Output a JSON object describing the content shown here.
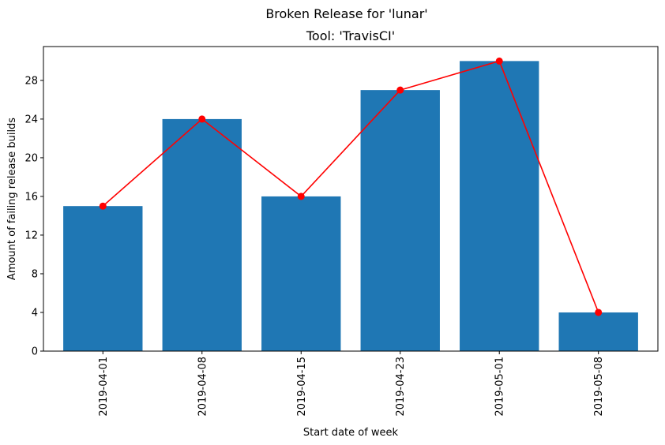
{
  "chart_data": {
    "type": "bar",
    "title": "Broken Release for 'lunar'",
    "subtitle": "Tool: 'TravisCI'",
    "xlabel": "Start date of week",
    "ylabel": "Amount of failing release builds",
    "categories": [
      "2019-04-01",
      "2019-04-08",
      "2019-04-15",
      "2019-04-23",
      "2019-05-01",
      "2019-05-08"
    ],
    "values": [
      15,
      24,
      16,
      27,
      30,
      4
    ],
    "overlay_line": {
      "values": [
        15,
        24,
        16,
        27,
        30,
        4
      ],
      "color": "#ff0000",
      "marker": "circle"
    },
    "yticks": [
      0,
      4,
      8,
      12,
      16,
      20,
      24,
      28
    ],
    "ylim": [
      0,
      31.5
    ],
    "grid": false,
    "bar_color": "#1f77b4"
  }
}
